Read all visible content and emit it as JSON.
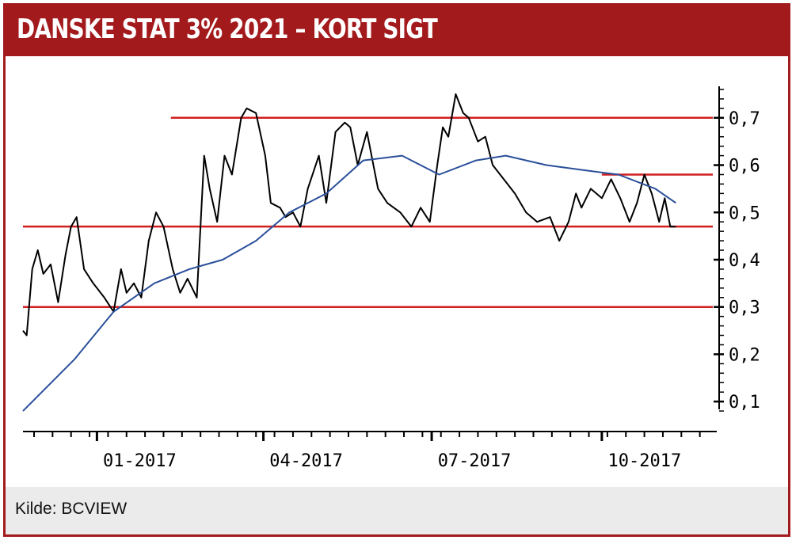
{
  "header": {
    "title": "DANSKE STAT 3% 2021 – KORT SIGT"
  },
  "footer": {
    "source": "Kilde: BCVIEW"
  },
  "colors": {
    "accent": "#a31a1d",
    "price_line": "#000000",
    "ma_line": "#2a4f9a",
    "ref_line": "#d01f1f"
  },
  "chart_data": {
    "type": "line",
    "title": "DANSKE STAT 3% 2021 – KORT SIGT",
    "x_tick_labels": [
      "01-2017",
      "04-2017",
      "07-2017",
      "10-2017"
    ],
    "y_tick_labels": [
      "0,1",
      "0,2",
      "0,3",
      "0,4",
      "0,5",
      "0,6",
      "0,7"
    ],
    "ylim": [
      0.05,
      0.77
    ],
    "xlim": [
      "2016-11-22",
      "2017-11-30"
    ],
    "grid": false,
    "y_axis_side": "right",
    "horizontal_lines": [
      {
        "y": 0.7,
        "x_start": "2017-02-10",
        "x_end": "2017-11-30"
      },
      {
        "y": 0.58,
        "x_start": "2017-10-01",
        "x_end": "2017-11-30"
      },
      {
        "y": 0.47,
        "x_start": "2016-11-22",
        "x_end": "2017-11-30"
      },
      {
        "y": 0.3,
        "x_start": "2016-11-22",
        "x_end": "2017-11-30"
      }
    ],
    "series": [
      {
        "style": "price",
        "x": [
          "2016-11-22",
          "2016-11-24",
          "2016-11-27",
          "2016-11-30",
          "2016-12-03",
          "2016-12-07",
          "2016-12-11",
          "2016-12-15",
          "2016-12-18",
          "2016-12-21",
          "2016-12-25",
          "2016-12-30",
          "2017-01-05",
          "2017-01-10",
          "2017-01-14",
          "2017-01-17",
          "2017-01-21",
          "2017-01-25",
          "2017-01-29",
          "2017-02-02",
          "2017-02-06",
          "2017-02-11",
          "2017-02-15",
          "2017-02-19",
          "2017-02-24",
          "2017-02-28",
          "2017-03-03",
          "2017-03-07",
          "2017-03-11",
          "2017-03-15",
          "2017-03-20",
          "2017-03-23",
          "2017-03-28",
          "2017-04-02",
          "2017-04-05",
          "2017-04-10",
          "2017-04-13",
          "2017-04-17",
          "2017-04-21",
          "2017-04-25",
          "2017-05-01",
          "2017-05-05",
          "2017-05-10",
          "2017-05-15",
          "2017-05-18",
          "2017-05-22",
          "2017-05-27",
          "2017-06-02",
          "2017-06-07",
          "2017-06-14",
          "2017-06-20",
          "2017-06-25",
          "2017-06-30",
          "2017-07-04",
          "2017-07-07",
          "2017-07-10",
          "2017-07-14",
          "2017-07-18",
          "2017-07-21",
          "2017-07-26",
          "2017-07-30",
          "2017-08-03",
          "2017-08-09",
          "2017-08-15",
          "2017-08-21",
          "2017-08-27",
          "2017-09-03",
          "2017-09-08",
          "2017-09-13",
          "2017-09-17",
          "2017-09-20",
          "2017-09-25",
          "2017-10-01",
          "2017-10-06",
          "2017-10-11",
          "2017-10-16",
          "2017-10-20",
          "2017-10-24",
          "2017-10-28",
          "2017-11-01",
          "2017-11-04",
          "2017-11-07",
          "2017-11-10"
        ],
        "y": [
          0.25,
          0.24,
          0.38,
          0.42,
          0.37,
          0.39,
          0.31,
          0.41,
          0.47,
          0.49,
          0.38,
          0.35,
          0.32,
          0.29,
          0.38,
          0.33,
          0.35,
          0.32,
          0.44,
          0.5,
          0.47,
          0.38,
          0.33,
          0.36,
          0.32,
          0.62,
          0.55,
          0.48,
          0.62,
          0.58,
          0.7,
          0.72,
          0.71,
          0.62,
          0.52,
          0.51,
          0.49,
          0.5,
          0.47,
          0.55,
          0.62,
          0.52,
          0.67,
          0.69,
          0.68,
          0.6,
          0.67,
          0.55,
          0.52,
          0.5,
          0.47,
          0.51,
          0.48,
          0.6,
          0.68,
          0.66,
          0.75,
          0.71,
          0.7,
          0.65,
          0.66,
          0.6,
          0.57,
          0.54,
          0.5,
          0.48,
          0.49,
          0.44,
          0.48,
          0.54,
          0.51,
          0.55,
          0.53,
          0.57,
          0.53,
          0.48,
          0.52,
          0.58,
          0.54,
          0.48,
          0.53,
          0.47,
          0.47
        ]
      },
      {
        "style": "moving-average",
        "x": [
          "2016-11-22",
          "2016-12-20",
          "2017-01-10",
          "2017-02-01",
          "2017-02-20",
          "2017-03-10",
          "2017-03-28",
          "2017-04-15",
          "2017-05-05",
          "2017-05-25",
          "2017-06-15",
          "2017-07-05",
          "2017-07-25",
          "2017-08-10",
          "2017-09-01",
          "2017-09-20",
          "2017-10-10",
          "2017-10-30",
          "2017-11-10"
        ],
        "y": [
          0.08,
          0.19,
          0.29,
          0.35,
          0.38,
          0.4,
          0.44,
          0.5,
          0.54,
          0.61,
          0.62,
          0.58,
          0.61,
          0.62,
          0.6,
          0.59,
          0.58,
          0.55,
          0.52
        ]
      }
    ]
  }
}
